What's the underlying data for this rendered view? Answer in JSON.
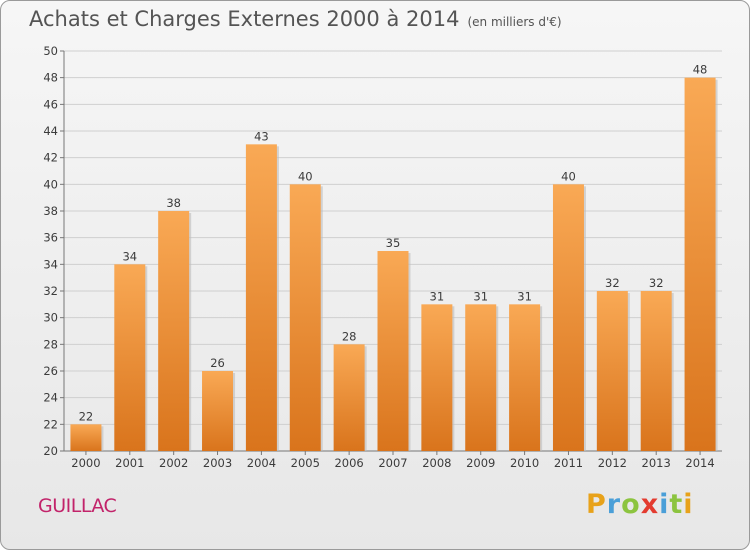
{
  "chart_data": {
    "type": "bar",
    "title": "Achats et Charges Externes 2000 à 2014",
    "subtitle": "(en milliers d'€)",
    "xlabel": "",
    "ylabel": "",
    "categories": [
      "2000",
      "2001",
      "2002",
      "2003",
      "2004",
      "2005",
      "2006",
      "2007",
      "2008",
      "2009",
      "2010",
      "2011",
      "2012",
      "2013",
      "2014"
    ],
    "values": [
      22,
      34,
      38,
      26,
      43,
      40,
      28,
      35,
      31,
      31,
      31,
      40,
      32,
      32,
      48
    ],
    "ylim": [
      20,
      50
    ],
    "yticks": [
      20,
      22,
      24,
      26,
      28,
      30,
      32,
      34,
      36,
      38,
      40,
      42,
      44,
      46,
      48,
      50
    ],
    "grid": "horizontal",
    "legend": "none",
    "bar_color_top": "#f9a955",
    "bar_color_bottom": "#d9741c"
  },
  "footer": {
    "town": "GUILLAC",
    "brand_letters": [
      {
        "char": "P",
        "color": "#e8a21a"
      },
      {
        "char": "r",
        "color": "#4a9fd8"
      },
      {
        "char": "o",
        "color": "#8cc43f"
      },
      {
        "char": "x",
        "color": "#e33b2f"
      },
      {
        "char": "i",
        "color": "#4a9fd8"
      },
      {
        "char": "t",
        "color": "#8cc43f"
      },
      {
        "char": "i",
        "color": "#e8a21a"
      }
    ]
  }
}
